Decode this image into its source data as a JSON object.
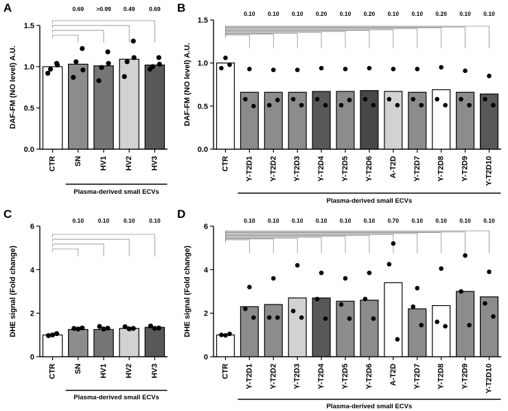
{
  "colors": {
    "white": "#ffffff",
    "light_gray": "#d2d2d2",
    "mid_gray": "#a9a9a9",
    "gray": "#8c8c8c",
    "dark_gray": "#757575",
    "charcoal": "#585858",
    "dark": "#474747",
    "axis": "#000000",
    "bracket": "#8a8a8a"
  },
  "chart_data": [
    {
      "panel": "A",
      "type": "bar",
      "ylabel": "DAF-FM (NO level) A.U.",
      "ylim": [
        0,
        1.5
      ],
      "yticks": [
        0,
        0.5,
        1.0,
        1.5
      ],
      "ytick_labels": [
        "0.0",
        "0.5",
        "1.0",
        "1.5"
      ],
      "categories": [
        "CTR",
        "SN",
        "HV1",
        "HV2",
        "HV3"
      ],
      "values": [
        1.0,
        1.03,
        1.01,
        1.09,
        1.02
      ],
      "bar_colors": [
        "white",
        "gray",
        "dark_gray",
        "light_gray",
        "charcoal"
      ],
      "points": [
        [
          0.92,
          1.04,
          0.97,
          1.02
        ],
        [
          0.87,
          1.22,
          1.06,
          0.96
        ],
        [
          0.83,
          1.18,
          0.99,
          1.04
        ],
        [
          0.88,
          1.31,
          1.06,
          1.11
        ],
        [
          0.97,
          1.11,
          1.0,
          1.03
        ]
      ],
      "pvalues": [
        "",
        "0.69",
        ">0.99",
        "0.49",
        "0.69"
      ],
      "group_label": "Plasma-derived small ECVs",
      "group_from": 1,
      "group_to": 4
    },
    {
      "panel": "B",
      "type": "bar",
      "ylabel": "DAF-FM (NO level) A.U.",
      "ylim": [
        0,
        1.5
      ],
      "yticks": [
        0,
        0.5,
        1.0,
        1.5
      ],
      "ytick_labels": [
        "0.0",
        "0.5",
        "1.0",
        "1.5"
      ],
      "categories": [
        "CTR",
        "Y-T2D1",
        "Y-T2D2",
        "Y-T2D3",
        "Y-T2D4",
        "Y-T2D5",
        "Y-T2D6",
        "A-T2D",
        "Y-T2D7",
        "Y-T2D8",
        "Y-T2D9",
        "Y-T2D10"
      ],
      "values": [
        1.0,
        0.66,
        0.66,
        0.66,
        0.67,
        0.67,
        0.68,
        0.67,
        0.66,
        0.69,
        0.66,
        0.64
      ],
      "bar_colors": [
        "white",
        "gray",
        "gray",
        "gray",
        "charcoal",
        "gray",
        "dark",
        "light_gray",
        "gray",
        "white",
        "gray",
        "charcoal"
      ],
      "points": [
        [
          1.06,
          0.94,
          0.98
        ],
        [
          0.93,
          0.58,
          0.5
        ],
        [
          0.92,
          0.51,
          0.57
        ],
        [
          0.92,
          0.58,
          0.51
        ],
        [
          0.94,
          0.58,
          0.51
        ],
        [
          0.93,
          0.51,
          0.57
        ],
        [
          0.94,
          0.58,
          0.51
        ],
        [
          0.93,
          0.58,
          0.51
        ],
        [
          0.93,
          0.58,
          0.51
        ],
        [
          0.95,
          0.58,
          0.51
        ],
        [
          0.91,
          0.58,
          0.51
        ],
        [
          0.85,
          0.58,
          0.51
        ]
      ],
      "pvalues": [
        "",
        "0.10",
        "0.10",
        "0.10",
        "0.20",
        "0.10",
        "0.20",
        "0.10",
        "0.10",
        "0.20",
        "0.10",
        "0.10"
      ],
      "group_label": "Plasma-derived small ECVs",
      "group_from": 1,
      "group_to": 11
    },
    {
      "panel": "C",
      "type": "bar",
      "ylabel": "DHE signal (Fold change)",
      "ylim": [
        0,
        6
      ],
      "yticks": [
        0,
        2,
        4,
        6
      ],
      "ytick_labels": [
        "0",
        "2",
        "4",
        "6"
      ],
      "categories": [
        "CTR",
        "SN",
        "HV1",
        "HV2",
        "HV3"
      ],
      "values": [
        1.0,
        1.25,
        1.25,
        1.3,
        1.35
      ],
      "bar_colors": [
        "white",
        "gray",
        "dark_gray",
        "light_gray",
        "charcoal"
      ],
      "points": [
        [
          1.0,
          0.97,
          1.06
        ],
        [
          1.27,
          1.3,
          1.32
        ],
        [
          1.27,
          1.39,
          1.31
        ],
        [
          1.28,
          1.38,
          1.3
        ],
        [
          1.3,
          1.41,
          1.32
        ]
      ],
      "pvalues": [
        "",
        "0.10",
        "0.10",
        "0.10",
        "0.10"
      ],
      "group_label": "Plasma-derived small ECVs",
      "group_from": 1,
      "group_to": 4
    },
    {
      "panel": "D",
      "type": "bar",
      "ylabel": "DHE signal (Fold change)",
      "ylim": [
        0,
        6
      ],
      "yticks": [
        0,
        2,
        4,
        6
      ],
      "ytick_labels": [
        "0",
        "2",
        "4",
        "6"
      ],
      "categories": [
        "CTR",
        "Y-T2D1",
        "Y-T2D2",
        "Y-T2D3",
        "Y-T2D4",
        "Y-T2D5",
        "Y-T2D6",
        "A-T2D",
        "Y-T2D7",
        "Y-T2D8",
        "Y-T2D9",
        "Y-T2D10"
      ],
      "values": [
        1.0,
        2.3,
        2.4,
        2.7,
        2.7,
        2.55,
        2.6,
        3.4,
        2.2,
        2.35,
        3.0,
        2.75
      ],
      "bar_colors": [
        "white",
        "gray",
        "gray",
        "light_gray",
        "charcoal",
        "gray",
        "gray",
        "white",
        "gray",
        "white",
        "gray",
        "gray"
      ],
      "points": [
        [
          0.98,
          1.0,
          1.05
        ],
        [
          3.2,
          2.2,
          1.8
        ],
        [
          3.6,
          1.8,
          1.8
        ],
        [
          4.2,
          2.1,
          1.8
        ],
        [
          3.85,
          2.65,
          1.75
        ],
        [
          3.6,
          2.4,
          1.75
        ],
        [
          3.85,
          2.65,
          1.75
        ],
        [
          5.2,
          4.25,
          0.8
        ],
        [
          3.15,
          2.3,
          1.45
        ],
        [
          4.05,
          1.6,
          1.4
        ],
        [
          4.65,
          3.0,
          1.45
        ],
        [
          3.9,
          2.45,
          1.85
        ]
      ],
      "pvalues": [
        "",
        "0.10",
        "0.10",
        "0.10",
        "0.10",
        "0.10",
        "0.10",
        "0.70",
        "0.10",
        "0.10",
        "0.10",
        "0.10"
      ],
      "group_label": "Plasma-derived small ECVs",
      "group_from": 1,
      "group_to": 11
    }
  ]
}
